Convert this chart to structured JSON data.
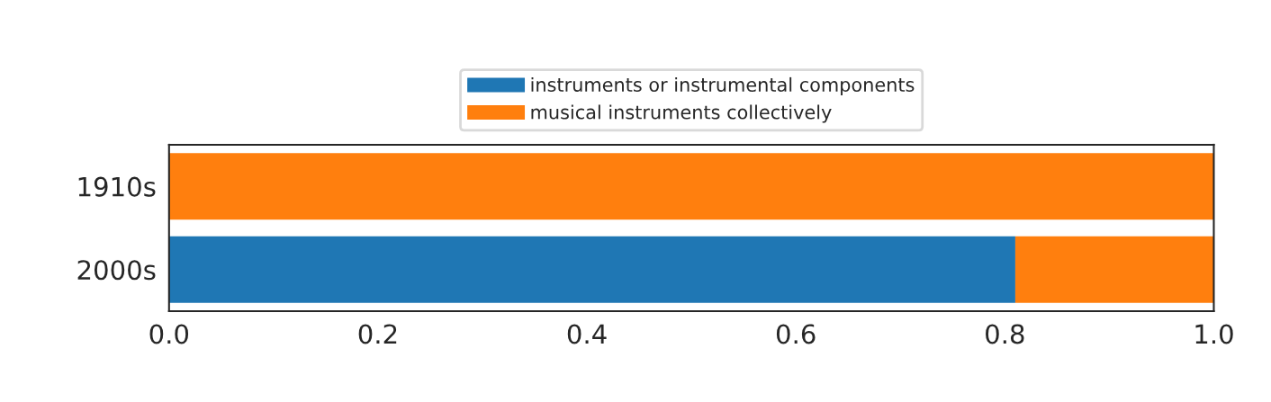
{
  "chart_data": {
    "type": "bar",
    "orientation": "horizontal",
    "stacked": true,
    "categories": [
      "1910s",
      "2000s"
    ],
    "series": [
      {
        "name": "instruments or instrumental components",
        "color": "#1f77b4",
        "values": [
          0,
          0.81
        ]
      },
      {
        "name": "musical instruments collectively",
        "color": "#ff7f0e",
        "values": [
          1.0,
          0.19
        ]
      }
    ],
    "xlim": [
      0,
      1
    ],
    "xticks": [
      {
        "value": 0,
        "label": "0.0"
      },
      {
        "value": 0.2,
        "label": "0.2"
      },
      {
        "value": 0.4,
        "label": "0.4"
      },
      {
        "value": 0.6,
        "label": "0.6"
      },
      {
        "value": 0.8,
        "label": "0.8"
      },
      {
        "value": 1,
        "label": "1.0"
      }
    ],
    "grid": false,
    "legend": "top"
  }
}
